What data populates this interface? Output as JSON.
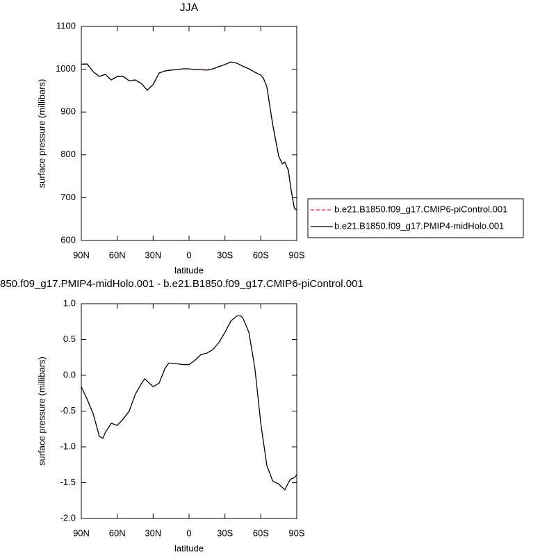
{
  "chart_data": [
    {
      "type": "line",
      "title": "JJA",
      "xlabel": "latitude",
      "ylabel": "surface pressure (millibars)",
      "x": [
        90,
        85,
        80,
        75,
        70,
        65,
        60,
        55,
        50,
        45,
        40,
        35,
        30,
        25,
        20,
        15,
        10,
        5,
        0,
        -5,
        -10,
        -15,
        -20,
        -25,
        -30,
        -35,
        -40,
        -45,
        -50,
        -55,
        -60,
        -62,
        -65,
        -70,
        -75,
        -78,
        -80,
        -83,
        -85,
        -88,
        -90
      ],
      "xlim": [
        90,
        -90
      ],
      "xticks": [
        {
          "value": 90,
          "label": "90N"
        },
        {
          "value": 60,
          "label": "60N"
        },
        {
          "value": 30,
          "label": "30N"
        },
        0,
        {
          "value": -30,
          "label": "30S"
        },
        {
          "value": -60,
          "label": "60S"
        },
        {
          "value": -90,
          "label": "90S"
        }
      ],
      "ylim": [
        600,
        1100
      ],
      "yticks": [
        600,
        700,
        800,
        900,
        1000,
        1100
      ],
      "legend": "right",
      "series": [
        {
          "name": "b.e21.B1850.f09_g17.CMIP6-piControl.001",
          "color": "#e8202a",
          "dashed": true,
          "values": [
            1012,
            1012,
            994,
            983,
            988,
            975,
            983,
            983,
            973,
            975,
            967,
            951,
            964,
            991,
            996,
            998,
            999,
            1001,
            1001,
            999,
            999,
            998,
            1001,
            1006,
            1011,
            1017,
            1014,
            1007,
            1001,
            993,
            986,
            980,
            959,
            869,
            796,
            779,
            783,
            764,
            723,
            675,
            671
          ]
        },
        {
          "name": "b.e21.B1850.f09_g17.PMIP4-midHolo.001",
          "color": "#000000",
          "dashed": false,
          "values": [
            1012,
            1012,
            994,
            983,
            988,
            975,
            983,
            983,
            973,
            975,
            967,
            951,
            964,
            991,
            996,
            998,
            999,
            1001,
            1001,
            999,
            999,
            998,
            1001,
            1006,
            1011,
            1017,
            1014,
            1007,
            1001,
            993,
            986,
            980,
            959,
            869,
            796,
            779,
            783,
            764,
            723,
            675,
            671
          ]
        }
      ]
    },
    {
      "type": "line",
      "title": "850.f09_g17.PMIP4-midHolo.001 - b.e21.B1850.f09_g17.CMIP6-piControl.001",
      "xlabel": "latitude",
      "ylabel": "surface pressure (millibars)",
      "x": [
        90,
        85,
        80,
        75,
        72,
        70,
        65,
        60,
        55,
        50,
        45,
        40,
        37,
        35,
        30,
        25,
        20,
        17,
        15,
        10,
        5,
        0,
        -5,
        -10,
        -15,
        -20,
        -25,
        -30,
        -35,
        -40,
        -43,
        -45,
        -50,
        -55,
        -60,
        -65,
        -70,
        -75,
        -80,
        -83,
        -85,
        -88,
        -90
      ],
      "xlim": [
        90,
        -90
      ],
      "xticks": [
        {
          "value": 90,
          "label": "90N"
        },
        {
          "value": 60,
          "label": "60N"
        },
        {
          "value": 30,
          "label": "30N"
        },
        0,
        {
          "value": -30,
          "label": "30S"
        },
        {
          "value": -60,
          "label": "60S"
        },
        {
          "value": -90,
          "label": "90S"
        }
      ],
      "ylim": [
        -2,
        1
      ],
      "yticks": [
        {
          "value": -2,
          "label": "-2.0"
        },
        {
          "value": -1.5,
          "label": "-1.5"
        },
        {
          "value": -1,
          "label": "-1.0"
        },
        {
          "value": -0.5,
          "label": "-0.5"
        },
        {
          "value": 0,
          "label": "0.0"
        },
        0.5,
        {
          "value": 1,
          "label": "1.0"
        }
      ],
      "series": [
        {
          "color": "#000000",
          "dashed": false,
          "values": [
            -0.16,
            -0.34,
            -0.54,
            -0.85,
            -0.88,
            -0.8,
            -0.67,
            -0.7,
            -0.61,
            -0.5,
            -0.27,
            -0.12,
            -0.05,
            -0.08,
            -0.16,
            -0.11,
            0.1,
            0.17,
            0.17,
            0.16,
            0.15,
            0.15,
            0.21,
            0.29,
            0.31,
            0.36,
            0.46,
            0.6,
            0.76,
            0.83,
            0.83,
            0.8,
            0.6,
            0.1,
            -0.68,
            -1.26,
            -1.48,
            -1.52,
            -1.6,
            -1.5,
            -1.45,
            -1.43,
            -1.39
          ]
        }
      ]
    }
  ]
}
